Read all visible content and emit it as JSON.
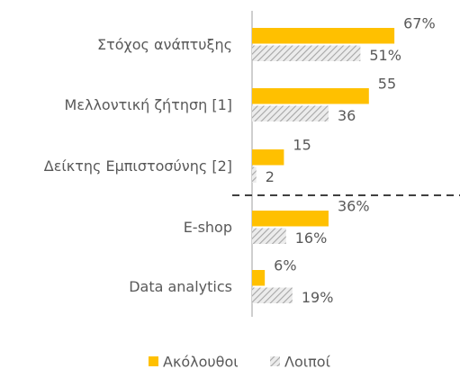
{
  "chart_data": {
    "type": "hbar",
    "categories": [
      "Στόχος ανάπτυξης",
      "Μελλοντική ζήτηση [1]",
      "Δείκτης Εμπιστοσύνης [2]",
      "E-shop",
      "Data analytics"
    ],
    "series": [
      {
        "name": "Ακόλουθοι",
        "color": "#FFC000",
        "values": [
          67,
          55,
          15,
          36,
          6
        ],
        "value_labels": [
          "67%",
          "55",
          "15",
          "36%",
          "6%"
        ]
      },
      {
        "name": "Λοιποί",
        "color": "#a6a6a6",
        "hatch": true,
        "values": [
          51,
          36,
          2,
          16,
          19
        ],
        "value_labels": [
          "51%",
          "36",
          "2",
          "16%",
          "19%"
        ]
      }
    ],
    "legend": "bottom"
  }
}
